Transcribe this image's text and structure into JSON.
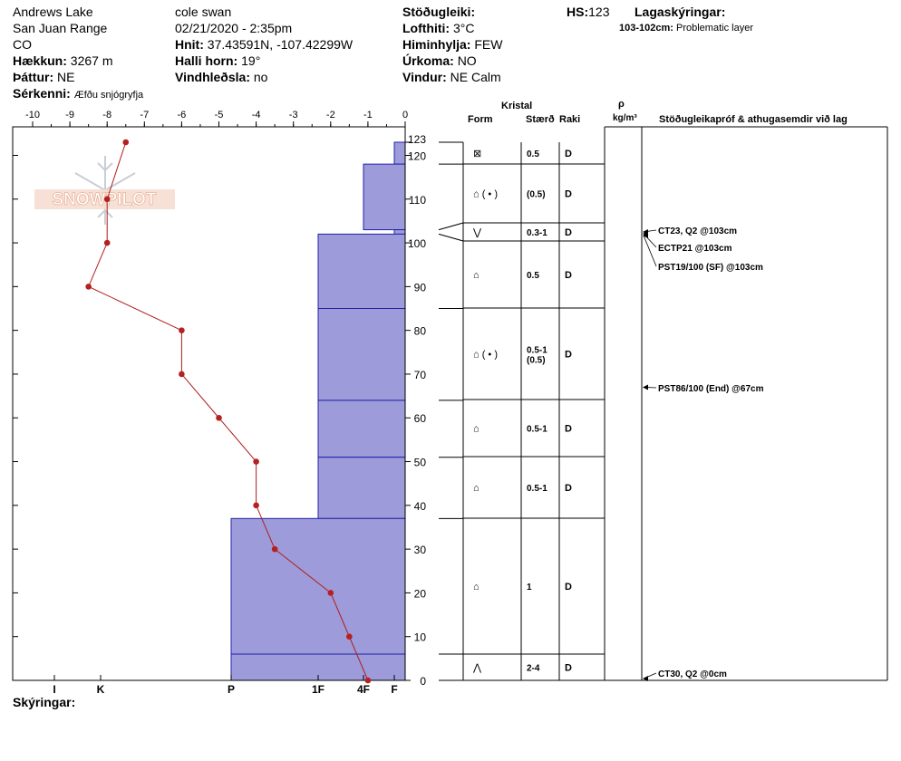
{
  "header": {
    "location": "Andrews Lake",
    "range": "San Juan Range",
    "state": "CO",
    "elevation_label": "Hækkun:",
    "elevation_value": "3267 m",
    "aspect_label": "Þáttur:",
    "aspect_value": "NE",
    "specifics_label": "Sérkenni:",
    "specifics_value": "Æfðu snjógryfja",
    "observer": "cole  swan",
    "datetime": "02/21/2020 - 2:35pm",
    "coords_label": "Hnit:",
    "coords_value": "37.43591N, -107.42299W",
    "slope_label": "Halli horn:",
    "slope_value": "19°",
    "wind_loading_label": "Vindhleðsla:",
    "wind_loading_value": "no",
    "stability_label": "Stöðugleiki:",
    "air_temp_label": "Lofthiti:",
    "air_temp_value": "3°C",
    "sky_label": "Himinhylja:",
    "sky_value": "FEW",
    "precip_label": "Úrkoma:",
    "precip_value": "NO",
    "wind_label": "Vindur:",
    "wind_value": "NE Calm",
    "hs_label": "HS:",
    "hs_value": "123",
    "layer_notes_title": "Lagaskýringar:",
    "layer_note_range": "103-102cm:",
    "layer_note_text": "Problematic layer",
    "footer_label": "Skýringar:"
  },
  "logo_text": "SNOWPILOT",
  "columns": {
    "crystal": "Kristal",
    "form": "Form",
    "size": "Stærð",
    "moisture": "Raki",
    "rho": "ρ",
    "density_unit": "kg/m³",
    "tests": "Stöðugleikapróf & athugasemdir við lag"
  },
  "chart_data": {
    "type": "snow_profile",
    "temp_axis": {
      "min": -10,
      "max": 0,
      "ticks": [
        -10,
        -9,
        -8,
        -7,
        -6,
        -5,
        -4,
        -3,
        -2,
        -1,
        0
      ]
    },
    "height_axis": {
      "min": 0,
      "max": 123,
      "ticks": [
        0,
        10,
        20,
        30,
        40,
        50,
        60,
        70,
        80,
        90,
        100,
        110,
        120,
        123
      ]
    },
    "hardness_ticks": [
      "I",
      "K",
      "P",
      "1F",
      "4F",
      "F"
    ],
    "temperature_profile": [
      {
        "height": 123,
        "temp": -7.5
      },
      {
        "height": 110,
        "temp": -8
      },
      {
        "height": 100,
        "temp": -8
      },
      {
        "height": 90,
        "temp": -8.5
      },
      {
        "height": 80,
        "temp": -6
      },
      {
        "height": 70,
        "temp": -6
      },
      {
        "height": 60,
        "temp": -5
      },
      {
        "height": 50,
        "temp": -4
      },
      {
        "height": 40,
        "temp": -4
      },
      {
        "height": 30,
        "temp": -3.5
      },
      {
        "height": 20,
        "temp": -2
      },
      {
        "height": 10,
        "temp": -1.5
      },
      {
        "height": 0,
        "temp": -1
      }
    ],
    "layers": [
      {
        "top": 123,
        "bottom": 118,
        "hardness": "F",
        "form": "⊠",
        "size": "0.5",
        "moisture": "D"
      },
      {
        "top": 118,
        "bottom": 103,
        "hardness": "4F",
        "form": "⌂ ( • )",
        "size": "(0.5)",
        "moisture": "D"
      },
      {
        "top": 103,
        "bottom": 102,
        "hardness": "F",
        "form": "⋁",
        "size": "0.3-1",
        "moisture": "D"
      },
      {
        "top": 102,
        "bottom": 85,
        "hardness": "1F",
        "form": "⌂",
        "size": "0.5",
        "moisture": "D"
      },
      {
        "top": 85,
        "bottom": 64,
        "hardness": "1F",
        "form": "⌂ ( • )",
        "size": "0.5-1\n(0.5)",
        "moisture": "D"
      },
      {
        "top": 64,
        "bottom": 51,
        "hardness": "1F",
        "form": "⌂",
        "size": "0.5-1",
        "moisture": "D"
      },
      {
        "top": 51,
        "bottom": 37,
        "hardness": "1F",
        "form": "⌂",
        "size": "0.5-1",
        "moisture": "D"
      },
      {
        "top": 37,
        "bottom": 6,
        "hardness": "P",
        "form": "⌂",
        "size": "1",
        "moisture": "D"
      },
      {
        "top": 6,
        "bottom": 0,
        "hardness": "P",
        "form": "⋀",
        "size": "2-4",
        "moisture": "D"
      }
    ],
    "tests": [
      {
        "text": "CT23, Q2 @103cm",
        "height": 103
      },
      {
        "text": "ECTP21 @103cm",
        "height": 103
      },
      {
        "text": "PST19/100 (SF) @103cm",
        "height": 103
      },
      {
        "text": "PST86/100 (End) @67cm",
        "height": 67
      },
      {
        "text": "CT30, Q2 @0cm",
        "height": 0
      }
    ]
  }
}
